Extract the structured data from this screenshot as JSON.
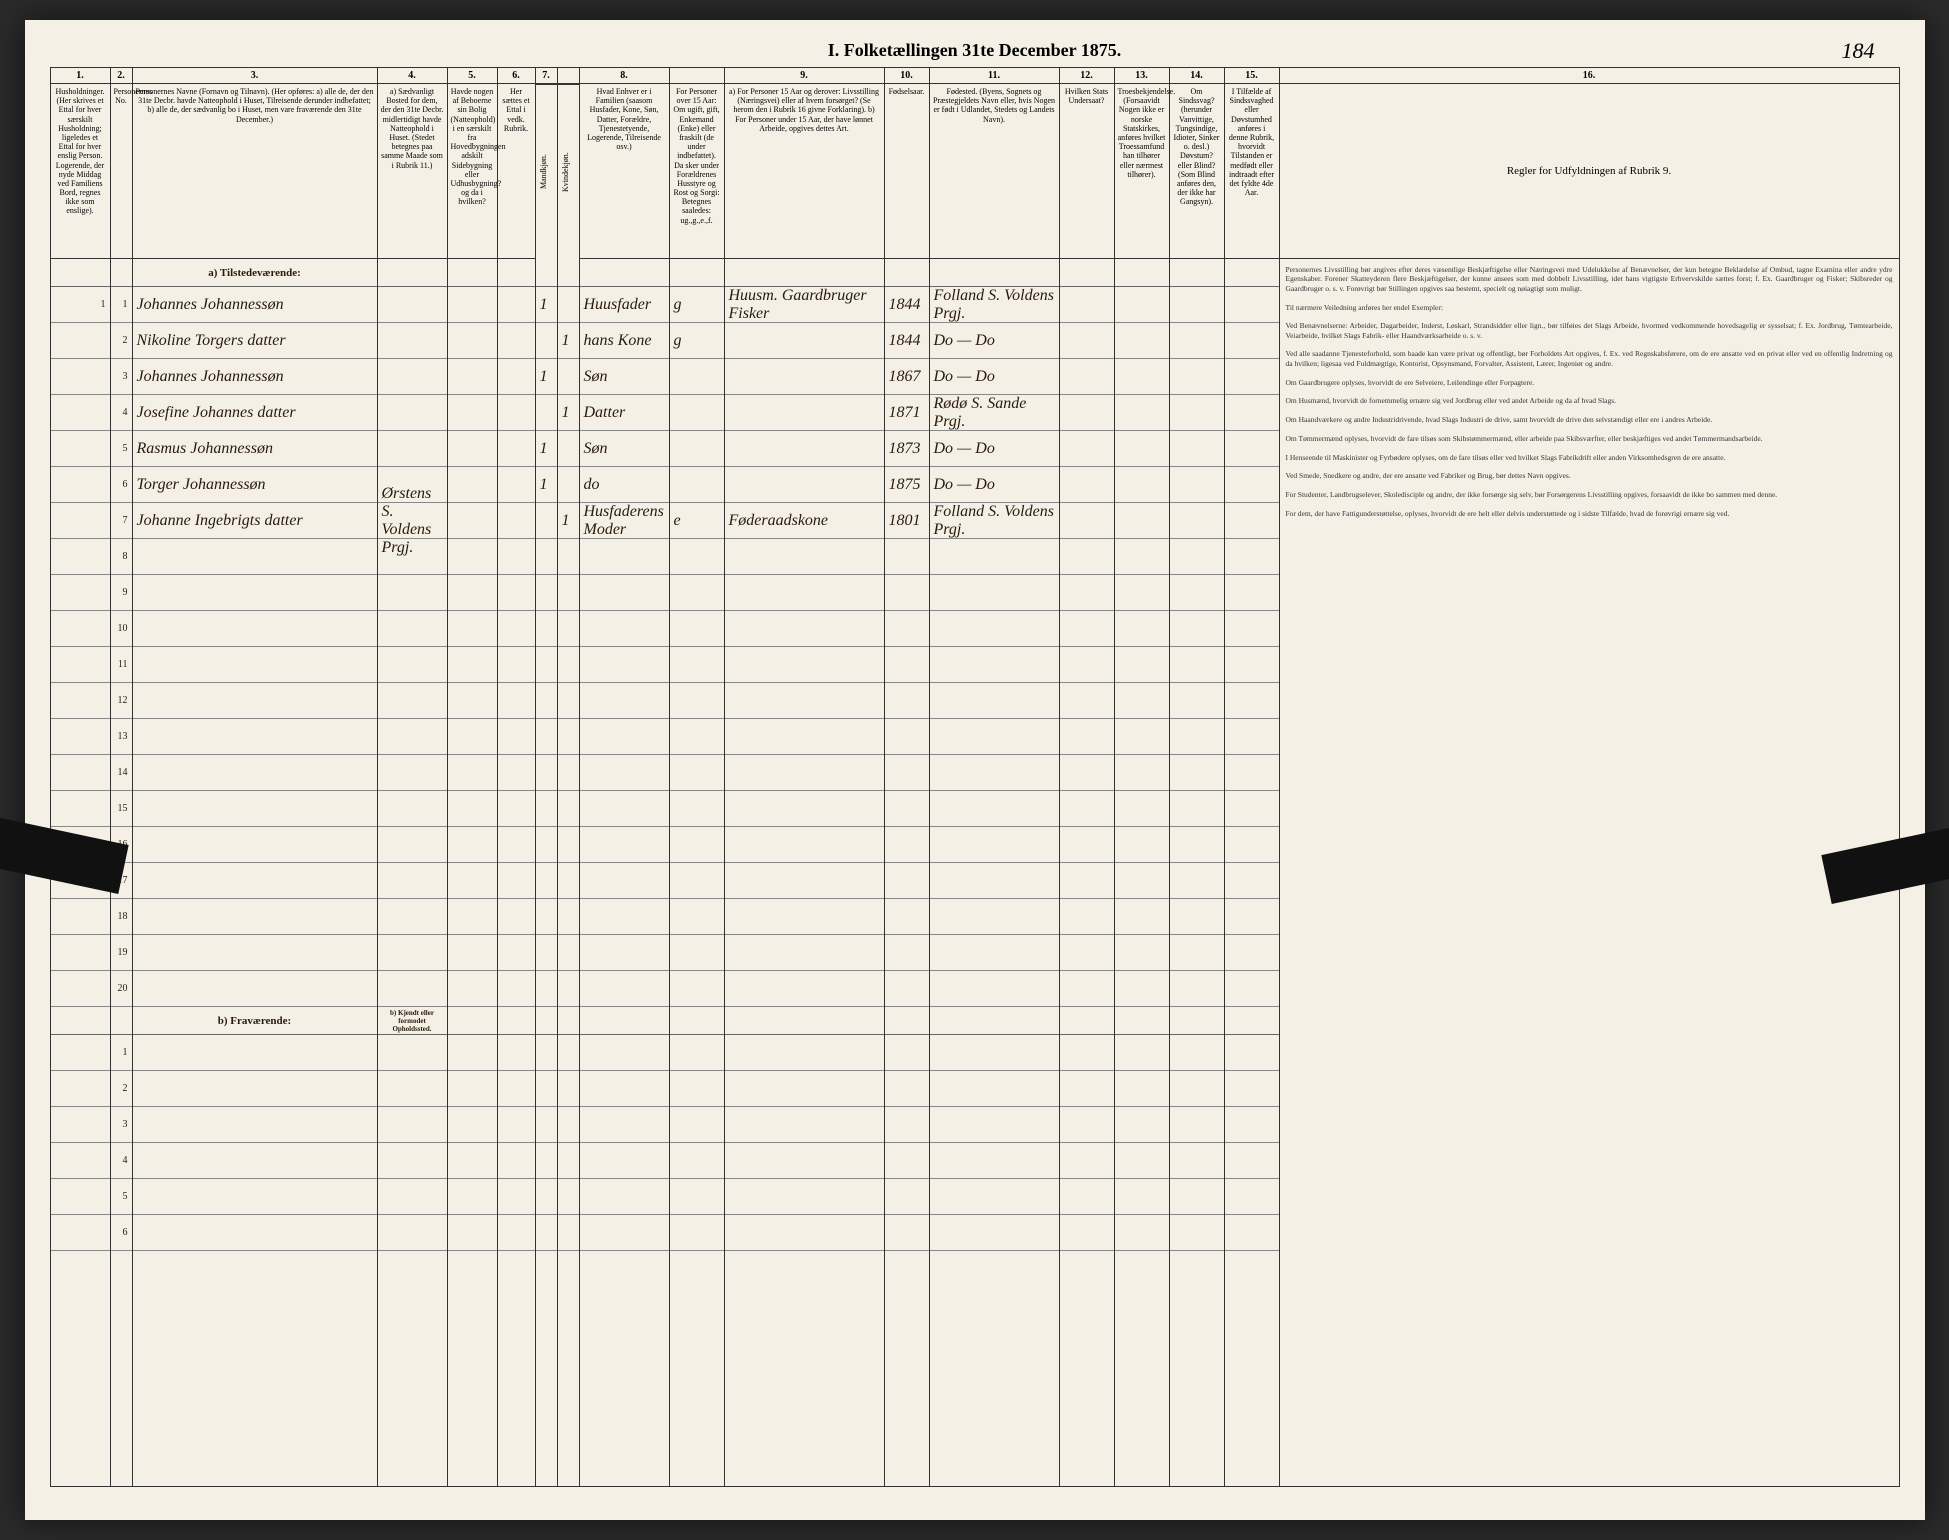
{
  "page_number": "184",
  "title": "I. Folketællingen 31te December 1875.",
  "columns": {
    "c1": {
      "num": "1.",
      "head": "Husholdninger. (Her skrives et Ettal for hver særskilt Husholdning; ligeledes et Ettal for hver enslig Person. Logerende, der nyde Middag ved Familiens Bord, regnes ikke som enslige)."
    },
    "c2": {
      "num": "2.",
      "head": "Personernes No."
    },
    "c3": {
      "num": "3.",
      "head": "Personernes Navne (Fornavn og Tilnavn). (Her opføres: a) alle de, der den 31te Decbr. havde Natteophold i Huset, Tilreisende derunder indbefattet; b) alle de, der sædvanlig bo i Huset, men vare fraværende den 31te December.)"
    },
    "c4": {
      "num": "4.",
      "head": "a) Sædvanligt Bosted for dem, der den 31te Decbr. midlertidigt havde Natteophold i Huset. (Stedet betegnes paa samme Maade som i Rubrik 11.)"
    },
    "c5": {
      "num": "5.",
      "head": "Havde nogen af Beboerne sin Bolig (Natteophold) i en særskilt fra Hovedbygningen adskilt Sidebygning eller Udhusbygning? og da i hvilken?"
    },
    "c6": {
      "num": "6.",
      "head": "Her sættes et Ettal i vedk. Rubrik."
    },
    "c7": {
      "num": "7.",
      "head": "Kjøn.",
      "sub_a": "Mandkjøn.",
      "sub_b": "Kvindekjøn."
    },
    "c8": {
      "num": "8.",
      "head": "Hvad Enhver er i Familien (saasom Husfader, Kone, Søn, Datter, Forældre, Tjenestetyende, Logerende, Tilreisende osv.)"
    },
    "c8b": {
      "head": "For Personer over 15 Aar: Om ugift, gift, Enkemand (Enke) eller fraskilt (de under indbefattet). Da sker under Forældrenes Husstyre og Rost og Sorgi: Betegnes saaledes: ug.,g.,e.,f."
    },
    "c9": {
      "num": "9.",
      "head": "a) For Personer 15 Aar og derover: Livsstilling (Næringsvei) eller af hvem forsørget? (Se herom den i Rubrik 16 givne Forklaring). b) For Personer under 15 Aar, der have lønnet Arbeide, opgives dettes Art."
    },
    "c10": {
      "num": "10.",
      "head": "Fødselsaar."
    },
    "c11": {
      "num": "11.",
      "head": "Fødested. (Byens, Sognets og Præstegjeldets Navn eller, hvis Nogen er født i Udlandet, Stedets og Landets Navn)."
    },
    "c12": {
      "num": "12.",
      "head": "Hvilken Stats Undersaat?"
    },
    "c13": {
      "num": "13.",
      "head": "Troesbekjendelse. (Forsaavidt Nogen ikke er norske Statskirkes, anføres hvilket Troessamfund han tilhører eller nærmest tilhører)."
    },
    "c14": {
      "num": "14.",
      "head": "Om Sindssvag? (herunder Vanvittige, Tungsindige, Idioter, Sinker o. desl.) Døvstum? eller Blind? (Som Blind anføres den, der ikke har Gangsyn)."
    },
    "c15": {
      "num": "15.",
      "head": "I Tilfælde af Sindssvaghed eller Døvstumhed anføres i denne Rubrik, hvorvidt Tilstanden er medfødt eller indtraadt efter det fyldte 4de Aar."
    },
    "c16": {
      "num": "16.",
      "head": "Regler for Udfyldningen af Rubrik 9."
    }
  },
  "section_a": "a) Tilstedeværende:",
  "section_b": "b) Fraværende:",
  "section_b_sub": "b) Kjendt eller formodet Opholdssted.",
  "rows": [
    {
      "hh": "1",
      "no": "1",
      "name": "Johannes Johannessøn",
      "c4": "",
      "c6": "",
      "m": "1",
      "k": "",
      "fam": "Huusfader",
      "civ": "g",
      "occ": "Huusm. Gaardbruger Fisker",
      "year": "1844",
      "place": "Folland S. Voldens Prgj."
    },
    {
      "hh": "",
      "no": "2",
      "name": "Nikoline Torgers datter",
      "c4": "",
      "c6": "",
      "m": "",
      "k": "1",
      "fam": "hans Kone",
      "civ": "g",
      "occ": "",
      "year": "1844",
      "place": "Do — Do"
    },
    {
      "hh": "",
      "no": "3",
      "name": "Johannes Johannessøn",
      "c4": "",
      "c6": "",
      "m": "1",
      "k": "",
      "fam": "Søn",
      "civ": "",
      "occ": "",
      "year": "1867",
      "place": "Do — Do"
    },
    {
      "hh": "",
      "no": "4",
      "name": "Josefine Johannes datter",
      "c4": "",
      "c6": "",
      "m": "",
      "k": "1",
      "fam": "Datter",
      "civ": "",
      "occ": "",
      "year": "1871",
      "place": "Rødø S. Sande Prgj."
    },
    {
      "hh": "",
      "no": "5",
      "name": "Rasmus Johannessøn",
      "c4": "",
      "c6": "",
      "m": "1",
      "k": "",
      "fam": "Søn",
      "civ": "",
      "occ": "",
      "year": "1873",
      "place": "Do — Do"
    },
    {
      "hh": "",
      "no": "6",
      "name": "Torger Johannessøn",
      "c4": "",
      "c6": "",
      "m": "1",
      "k": "",
      "fam": "do",
      "civ": "",
      "occ": "",
      "year": "1875",
      "place": "Do — Do"
    },
    {
      "hh": "",
      "no": "7",
      "name": "Johanne Ingebrigts datter",
      "c4": "Ørstens S. Voldens Prgj.",
      "c6": "",
      "m": "",
      "k": "1",
      "fam": "Husfaderens Moder",
      "civ": "e",
      "occ": "Føderaadskone",
      "year": "1801",
      "place": "Folland S. Voldens Prgj."
    }
  ],
  "rules_text": "Personernes Livsstilling bør angives efter deres væsentlige Beskjæftigelse eller Næringsvei med Udelukkelse af Benævnelser, der kun betegne Beklædelse af Ombud, tagne Examina eller andre ydre Egenskaber. Forener Skatteyderen flere Beskjæftigelser, der kunne ansees som med dobbelt Livsstilling, idet hans vigtigste Erhvervskilde sættes forst; f. Ex. Gaardbruger og Fisker; Skibsreder og Gaardbruger o. s. v. Forøvrigt bør Stillingen opgives saa bestemt, specielt og nøiagtigt som muligt.\n\nTil nærmere Veiledning anføres her endel Exempler:\n\nVed Benævnelserne: Arbeider, Dagarbeider, Inderst, Løskarl, Strandsidder eller lign., bør tilføies det Slags Arbeide, hvormed vedkommende hovedsagelig er sysselsat; f. Ex. Jordbrug, Tømtearbeide, Veiarbeide, hvilket Slags Fabrik- eller Haandværksarbeide o. s. v.\n\nVed alle saadanne Tjenesteforhold, som baade kan være privat og offentligt, bør Forholdets Art opgives, f. Ex. ved Regnskabsførere, om de ere ansatte ved en privat eller ved en offentlig Indretning og da hvilken; ligesaa ved Fuldmægtige, Kontorist, Opsynsmand, Forvalter, Assistent, Lærer, Ingeniør og andre.\n\nOm Gaardbrugere oplyses, hvorvidt de ere Selveiere, Leilendinge eller Forpagtere.\n\nOm Husmænd, hvorvidt de fornemmelig ernære sig ved Jordbrug eller ved andet Arbeide og da af hvad Slags.\n\nOm Haandværkere og andre Industridrivende, hvad Slags Industri de drive, samt hvorvidt de drive den selvstændigt eller ere i andres Arbeide.\n\nOm Tømmermænd oplyses, hvorvidt de fare tilsøs som Skibstømmermænd, eller arbeide paa Skibsværfter, eller beskjæftiges ved andet Tømmermandsarbeide.\n\nI Henseende til Maskinister og Fyrbødere oplyses, om de fare tilsøs eller ved hvilket Slags Fabrikdrift eller anden Virksomhedsgren de ere ansatte.\n\nVed Smede, Snedkere og andre, der ere ansatte ved Fabriker og Brug, bør dettes Navn opgives.\n\nFor Studenter, Landbrugselever, Skoledisciple og andre, der ikke forsørge sig selv, bør Forsørgerens Livsstilling opgives, forsaavidt de ikke bo sammen med denne.\n\nFor dem, der have Fattigunderstøttelse, oplyses, hvorvidt de ere helt eller delvis understøttede og i sidste Tilfælde, hvad de forøvrigi ernære sig ved."
}
